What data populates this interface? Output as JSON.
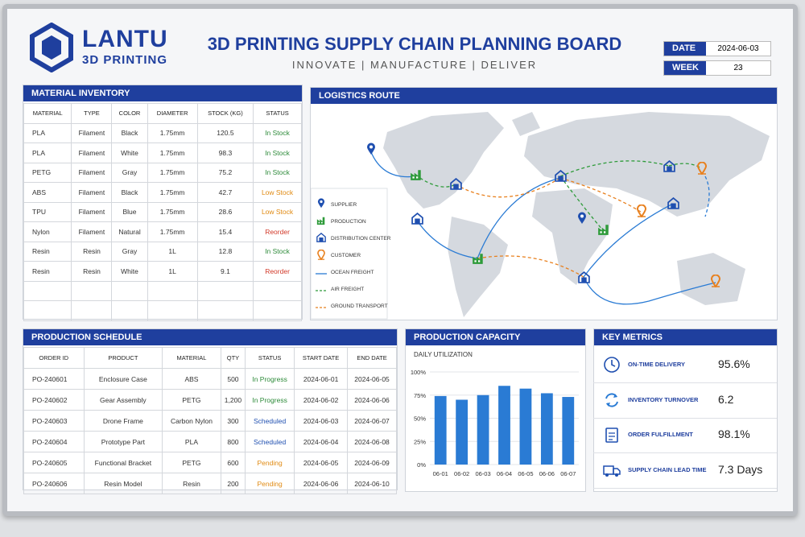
{
  "header": {
    "brand": "LANTU",
    "brand_sub": "3D PRINTING",
    "title": "3D PRINTING SUPPLY CHAIN PLANNING BOARD",
    "subtitle": "INNOVATE | MANUFACTURE | DELIVER",
    "date_label": "DATE",
    "date": "2024-06-03",
    "week_label": "WEEK",
    "week": 23
  },
  "status_colors": {
    "In Stock": "#2e8b3a",
    "Low Stock": "#e08a12",
    "Reorder": "#d23a2a",
    "In Progress": "#2e8b3a",
    "Scheduled": "#1f4fb0",
    "Pending": "#e08a12"
  },
  "inventory": {
    "title": "MATERIAL INVENTORY",
    "columns": [
      "MATERIAL",
      "TYPE",
      "COLOR",
      "DIAMETER",
      "STOCK (KG)",
      "STATUS"
    ],
    "rows": [
      [
        "PLA",
        "Filament",
        "Black",
        "1.75mm",
        120.5,
        "In Stock"
      ],
      [
        "PLA",
        "Filament",
        "White",
        "1.75mm",
        98.3,
        "In Stock"
      ],
      [
        "PETG",
        "Filament",
        "Gray",
        "1.75mm",
        75.2,
        "In Stock"
      ],
      [
        "ABS",
        "Filament",
        "Black",
        "1.75mm",
        42.7,
        "Low Stock"
      ],
      [
        "TPU",
        "Filament",
        "Blue",
        "1.75mm",
        28.6,
        "Low Stock"
      ],
      [
        "Nylon",
        "Filament",
        "Natural",
        "1.75mm",
        15.4,
        "Reorder"
      ],
      [
        "Resin",
        "Resin",
        "Gray",
        "1L",
        12.8,
        "In Stock"
      ],
      [
        "Resin",
        "Resin",
        "White",
        "1L",
        9.1,
        "Reorder"
      ]
    ]
  },
  "logistics": {
    "title": "LOGISTICS ROUTE",
    "legend": [
      "SUPPLIER",
      "PRODUCTION",
      "DISTRIBUTION CENTER",
      "CUSTOMER",
      "OCEAN FREIGHT",
      "AIR FREIGHT",
      "GROUND TRANSPORT"
    ]
  },
  "schedule": {
    "title": "PRODUCTION SCHEDULE",
    "columns": [
      "ORDER ID",
      "PRODUCT",
      "MATERIAL",
      "QTY",
      "STATUS",
      "START DATE",
      "END DATE"
    ],
    "rows": [
      [
        "PO-240601",
        "Enclosure Case",
        "ABS",
        500,
        "In Progress",
        "2024-06-01",
        "2024-06-05"
      ],
      [
        "PO-240602",
        "Gear Assembly",
        "PETG",
        "1,200",
        "In Progress",
        "2024-06-02",
        "2024-06-06"
      ],
      [
        "PO-240603",
        "Drone Frame",
        "Carbon Nylon",
        300,
        "Scheduled",
        "2024-06-03",
        "2024-06-07"
      ],
      [
        "PO-240604",
        "Prototype Part",
        "PLA",
        800,
        "Scheduled",
        "2024-06-04",
        "2024-06-08"
      ],
      [
        "PO-240605",
        "Functional Bracket",
        "PETG",
        600,
        "Pending",
        "2024-06-05",
        "2024-06-09"
      ],
      [
        "PO-240606",
        "Resin Model",
        "Resin",
        200,
        "Pending",
        "2024-06-06",
        "2024-06-10"
      ]
    ]
  },
  "capacity": {
    "type": "bar",
    "title": "PRODUCTION CAPACITY",
    "subtitle": "DAILY UTILIZATION",
    "categories": [
      "06-01",
      "06-02",
      "06-03",
      "06-04",
      "06-05",
      "06-06",
      "06-07"
    ],
    "values": [
      74,
      70,
      75,
      85,
      82,
      77,
      73
    ],
    "color": "#2a7bd4",
    "ylim": [
      0,
      100
    ],
    "yticks": [
      {
        "value": 0,
        "label": "0%"
      },
      {
        "value": 25,
        "label": "25%"
      },
      {
        "value": 50,
        "label": "50%"
      },
      {
        "value": 75,
        "label": "75%"
      },
      {
        "value": 100,
        "label": "100%"
      }
    ],
    "grid": true
  },
  "metrics": {
    "title": "KEY METRICS",
    "items": [
      {
        "label": "ON-TIME DELIVERY",
        "value": "95.6%"
      },
      {
        "label": "INVENTORY TURNOVER",
        "value": "6.2"
      },
      {
        "label": "ORDER FULFILLMENT",
        "value": "98.1%"
      },
      {
        "label": "SUPPLY CHAIN LEAD TIME",
        "value": "7.3 Days"
      }
    ]
  }
}
